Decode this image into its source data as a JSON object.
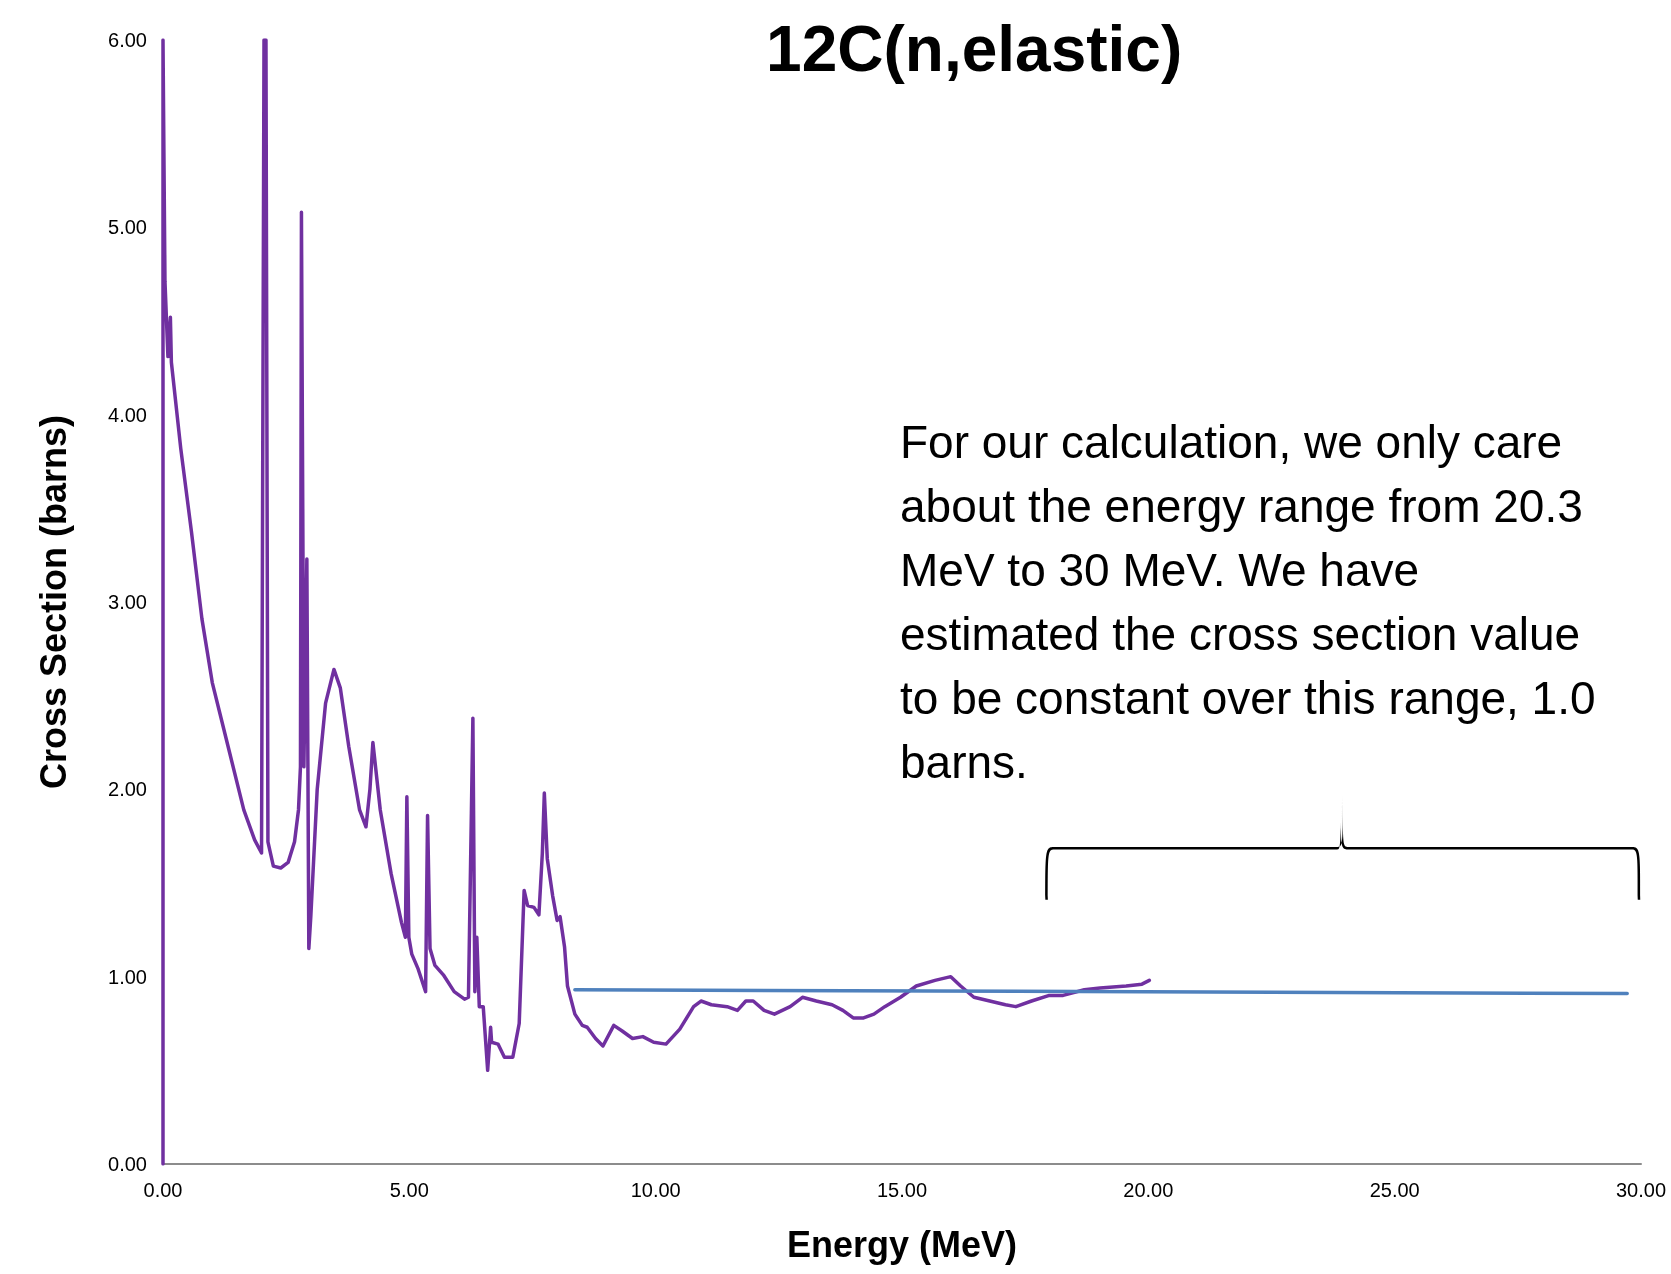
{
  "chart_data": {
    "type": "line",
    "title": "12C(n,elastic)",
    "xlabel": "Energy (MeV)",
    "ylabel": "Cross Section (barns)",
    "annotations": [
      "For our calculation, we only care about the energy range from 20.3 MeV to 30 MeV.  We have estimated the cross section value to be constant over this range, 1.0 barns."
    ],
    "xlim": [
      0,
      30
    ],
    "xticks": [
      {
        "value": 0,
        "label": "0.00"
      },
      {
        "value": 5,
        "label": "5.00"
      },
      {
        "value": 10,
        "label": "10.00"
      },
      {
        "value": 15,
        "label": "15.00"
      },
      {
        "value": 20,
        "label": "20.00"
      },
      {
        "value": 25,
        "label": "25.00"
      },
      {
        "value": 30,
        "label": "30.00"
      }
    ],
    "ylim": [
      0,
      6
    ],
    "yticks": [
      {
        "value": 0,
        "label": "0.00"
      },
      {
        "value": 1,
        "label": "1.00"
      },
      {
        "value": 2,
        "label": "2.00"
      },
      {
        "value": 3,
        "label": "3.00"
      },
      {
        "value": 4,
        "label": "4.00"
      },
      {
        "value": 5,
        "label": "5.00"
      },
      {
        "value": 6,
        "label": "6.00"
      }
    ],
    "grid": false,
    "marker": "none",
    "line_style": "solid",
    "series": [
      {
        "color": "#7030a0",
        "x": [
          0,
          0,
          0.04,
          0.1,
          0.15,
          0.17,
          0.36,
          0.58,
          0.79,
          1.0,
          1.32,
          1.64,
          1.86,
          2.0,
          2.05,
          2.09,
          2.13,
          2.24,
          2.39,
          2.54,
          2.67,
          2.75,
          2.79,
          2.81,
          2.86,
          2.92,
          2.96,
          3.0,
          3.13,
          3.3,
          3.47,
          3.6,
          3.77,
          3.99,
          4.12,
          4.2,
          4.26,
          4.41,
          4.63,
          4.84,
          4.92,
          4.95,
          4.99,
          5.05,
          5.18,
          5.33,
          5.37,
          5.42,
          5.52,
          5.69,
          5.91,
          6.12,
          6.2,
          6.29,
          6.33,
          6.37,
          6.42,
          6.5,
          6.59,
          6.65,
          6.67,
          6.8,
          6.93,
          7.1,
          7.23,
          7.33,
          7.4,
          7.53,
          7.63,
          7.7,
          7.74,
          7.8,
          7.91,
          8.0,
          8.06,
          8.15,
          8.21,
          8.36,
          8.51,
          8.61,
          8.78,
          8.93,
          9.15,
          9.32,
          9.53,
          9.74,
          9.96,
          10.21,
          10.49,
          10.77,
          10.92,
          11.13,
          11.45,
          11.66,
          11.83,
          11.98,
          12.2,
          12.41,
          12.73,
          12.98,
          13.26,
          13.58,
          13.8,
          14.01,
          14.22,
          14.43,
          14.65,
          14.97,
          15.29,
          15.67,
          15.99,
          16.19,
          16.46,
          16.78,
          17.1,
          17.31,
          17.63,
          17.99,
          18.27,
          18.7,
          19.02,
          19.55,
          19.87,
          20.02
        ],
        "values": [
          0,
          6.0,
          4.71,
          4.31,
          4.52,
          4.28,
          3.82,
          3.37,
          2.91,
          2.57,
          2.23,
          1.89,
          1.73,
          1.66,
          6.0,
          6.0,
          1.72,
          1.59,
          1.58,
          1.61,
          1.72,
          1.89,
          2.12,
          5.08,
          2.12,
          3.23,
          1.15,
          1.32,
          2.0,
          2.46,
          2.64,
          2.54,
          2.23,
          1.89,
          1.8,
          2.0,
          2.25,
          1.89,
          1.55,
          1.29,
          1.21,
          1.96,
          1.21,
          1.12,
          1.04,
          0.92,
          1.86,
          1.15,
          1.06,
          1.01,
          0.92,
          0.88,
          0.89,
          2.38,
          0.92,
          1.21,
          0.84,
          0.84,
          0.5,
          0.73,
          0.65,
          0.64,
          0.57,
          0.57,
          0.75,
          1.46,
          1.38,
          1.37,
          1.33,
          1.66,
          1.98,
          1.63,
          1.43,
          1.3,
          1.32,
          1.16,
          0.95,
          0.8,
          0.74,
          0.73,
          0.67,
          0.63,
          0.74,
          0.71,
          0.67,
          0.68,
          0.65,
          0.64,
          0.72,
          0.84,
          0.87,
          0.85,
          0.84,
          0.82,
          0.87,
          0.87,
          0.82,
          0.8,
          0.84,
          0.89,
          0.87,
          0.85,
          0.82,
          0.78,
          0.78,
          0.8,
          0.84,
          0.89,
          0.95,
          0.98,
          1.0,
          0.95,
          0.89,
          0.87,
          0.85,
          0.84,
          0.87,
          0.9,
          0.9,
          0.93,
          0.94,
          0.95,
          0.96,
          0.98
        ]
      },
      {
        "color": "#4f81bd",
        "x": [
          8.36,
          29.72
        ],
        "values": [
          0.93,
          0.91
        ]
      }
    ]
  }
}
